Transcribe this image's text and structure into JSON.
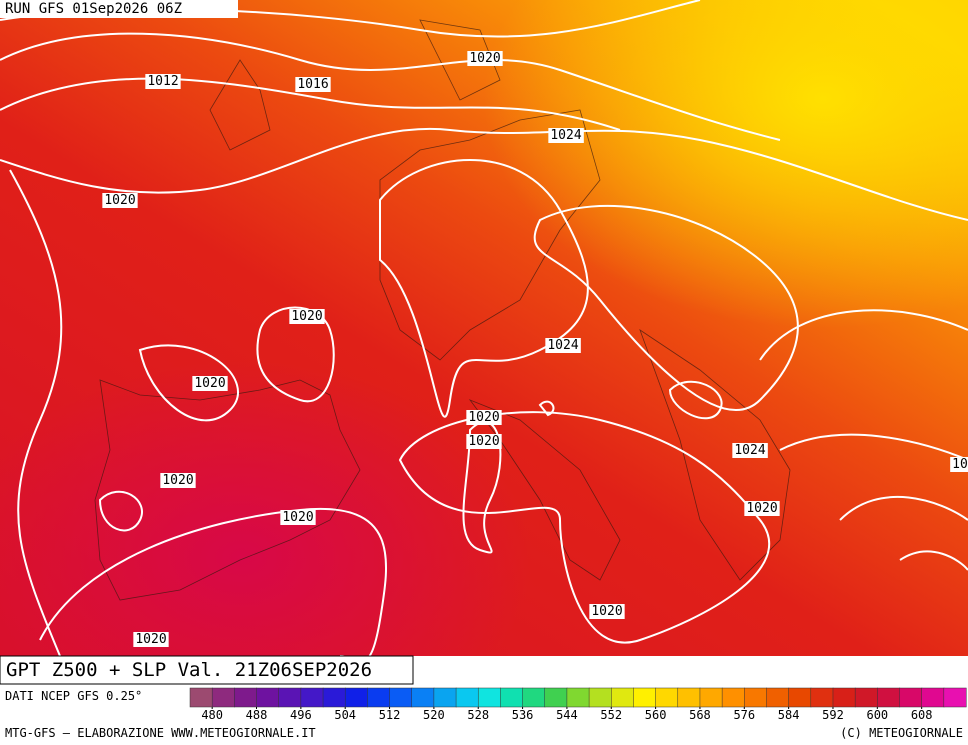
{
  "header": {
    "run": "RUN GFS 01Sep2026 06Z",
    "title": "GPT Z500 + SLP Val. 21Z06SEP2026"
  },
  "isobar_labels": [
    "1020",
    "1012",
    "1016",
    "1024",
    "1020",
    "1020",
    "1024",
    "1020",
    "1020",
    "1020",
    "1024",
    "1020",
    "1020",
    "1020",
    "1020",
    "1020",
    "10"
  ],
  "colorbar": {
    "range": [
      476,
      616
    ],
    "ticks": [
      480,
      488,
      496,
      504,
      512,
      520,
      528,
      536,
      544,
      552,
      560,
      568,
      576,
      584,
      592,
      600,
      608
    ],
    "colors": [
      "#9c4a70",
      "#8e2a7e",
      "#7e1a8c",
      "#6e12a0",
      "#5a14b4",
      "#4418c8",
      "#2a1ad8",
      "#1020e8",
      "#0a3cf0",
      "#0a5cf5",
      "#0a80f5",
      "#0aa4f0",
      "#0ac8f0",
      "#10e4e0",
      "#10e0b0",
      "#20d880",
      "#40d050",
      "#80d830",
      "#b4e020",
      "#e0e810",
      "#fff000",
      "#ffd800",
      "#ffc000",
      "#ffa800",
      "#ff9000",
      "#f87800",
      "#f06000",
      "#e84800",
      "#e03010",
      "#d82018",
      "#d01828",
      "#d01040",
      "#d80868",
      "#e00890",
      "#e810b0"
    ]
  },
  "footer": {
    "source": "DATI NCEP GFS 0.25°",
    "credit": "MTG-GFS — ELABORAZIONE WWW.METEOGIORNALE.IT",
    "copyright": "(C) METEOGIORNALE"
  }
}
